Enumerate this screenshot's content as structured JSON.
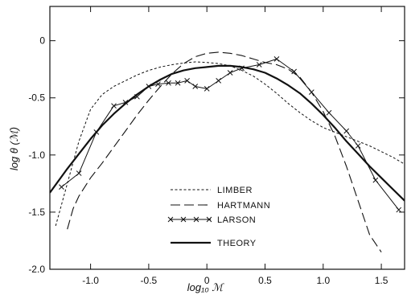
{
  "chart_data": {
    "type": "line",
    "title": "",
    "xlabel": "log₁₀ ℳ",
    "ylabel": "log θ (ℳ)",
    "xlim": [
      -1.35,
      1.7
    ],
    "ylim": [
      -2.0,
      0.3
    ],
    "x_ticks": [
      -1.0,
      -0.5,
      0,
      0.5,
      1.0,
      1.5
    ],
    "x_tick_labels": [
      "-1.0",
      "-0.5",
      "0",
      "0.5",
      "1.0",
      "1.5"
    ],
    "y_ticks": [
      0,
      -0.5,
      -1.0,
      -1.5,
      -2.0
    ],
    "y_tick_labels": [
      "0",
      "-0.5",
      "-1.0",
      "-1.5",
      "-2.0"
    ],
    "grid": false,
    "legend_position": "lower-center",
    "series": [
      {
        "name": "LIMBER",
        "style": "short-dash",
        "x": [
          -1.3,
          -1.2,
          -1.1,
          -1.0,
          -0.9,
          -0.8,
          -0.7,
          -0.6,
          -0.5,
          -0.4,
          -0.3,
          -0.2,
          -0.1,
          0.0,
          0.1,
          0.2,
          0.3,
          0.4,
          0.5,
          0.6,
          0.7,
          0.8,
          0.9,
          1.0,
          1.1,
          1.2,
          1.3,
          1.4,
          1.5,
          1.6,
          1.7
        ],
        "y": [
          -1.62,
          -1.25,
          -0.88,
          -0.6,
          -0.47,
          -0.4,
          -0.35,
          -0.3,
          -0.26,
          -0.23,
          -0.21,
          -0.195,
          -0.185,
          -0.19,
          -0.2,
          -0.22,
          -0.26,
          -0.31,
          -0.38,
          -0.46,
          -0.55,
          -0.63,
          -0.7,
          -0.76,
          -0.8,
          -0.84,
          -0.88,
          -0.92,
          -0.97,
          -1.02,
          -1.08
        ]
      },
      {
        "name": "HARTMANN",
        "style": "long-dash",
        "x": [
          -1.2,
          -1.15,
          -1.1,
          -1.0,
          -0.9,
          -0.8,
          -0.7,
          -0.6,
          -0.5,
          -0.4,
          -0.3,
          -0.2,
          -0.1,
          0.0,
          0.1,
          0.2,
          0.3,
          0.4,
          0.5,
          0.6,
          0.7,
          0.8,
          0.9,
          1.0,
          1.1,
          1.2,
          1.3,
          1.4,
          1.5
        ],
        "y": [
          -1.65,
          -1.47,
          -1.36,
          -1.2,
          -1.07,
          -0.93,
          -0.79,
          -0.65,
          -0.52,
          -0.4,
          -0.29,
          -0.2,
          -0.14,
          -0.11,
          -0.1,
          -0.11,
          -0.13,
          -0.16,
          -0.19,
          -0.21,
          -0.25,
          -0.32,
          -0.45,
          -0.62,
          -0.83,
          -1.1,
          -1.4,
          -1.7,
          -1.85
        ]
      },
      {
        "name": "LARSON",
        "style": "solid-x",
        "x": [
          -1.25,
          -1.1,
          -0.95,
          -0.8,
          -0.7,
          -0.6,
          -0.5,
          -0.42,
          -0.33,
          -0.25,
          -0.17,
          -0.1,
          0.0,
          0.1,
          0.2,
          0.3,
          0.45,
          0.6,
          0.75,
          0.9,
          1.05,
          1.2,
          1.3,
          1.45,
          1.65
        ],
        "y": [
          -1.28,
          -1.16,
          -0.8,
          -0.57,
          -0.54,
          -0.49,
          -0.4,
          -0.38,
          -0.37,
          -0.37,
          -0.35,
          -0.4,
          -0.42,
          -0.35,
          -0.28,
          -0.24,
          -0.21,
          -0.16,
          -0.27,
          -0.45,
          -0.63,
          -0.79,
          -0.92,
          -1.22,
          -1.48
        ]
      },
      {
        "name": "THEORY",
        "style": "solid-thick",
        "x": [
          -1.35,
          -1.2,
          -1.1,
          -1.0,
          -0.9,
          -0.8,
          -0.7,
          -0.6,
          -0.5,
          -0.4,
          -0.3,
          -0.2,
          -0.1,
          0.0,
          0.1,
          0.2,
          0.3,
          0.4,
          0.5,
          0.6,
          0.7,
          0.8,
          0.9,
          1.0,
          1.1,
          1.2,
          1.3,
          1.4,
          1.5,
          1.6,
          1.7
        ],
        "y": [
          -1.33,
          -1.12,
          -0.99,
          -0.86,
          -0.74,
          -0.64,
          -0.55,
          -0.47,
          -0.4,
          -0.34,
          -0.29,
          -0.26,
          -0.24,
          -0.23,
          -0.22,
          -0.22,
          -0.23,
          -0.25,
          -0.28,
          -0.33,
          -0.39,
          -0.46,
          -0.55,
          -0.65,
          -0.76,
          -0.88,
          -0.99,
          -1.1,
          -1.2,
          -1.3,
          -1.4
        ]
      }
    ]
  }
}
